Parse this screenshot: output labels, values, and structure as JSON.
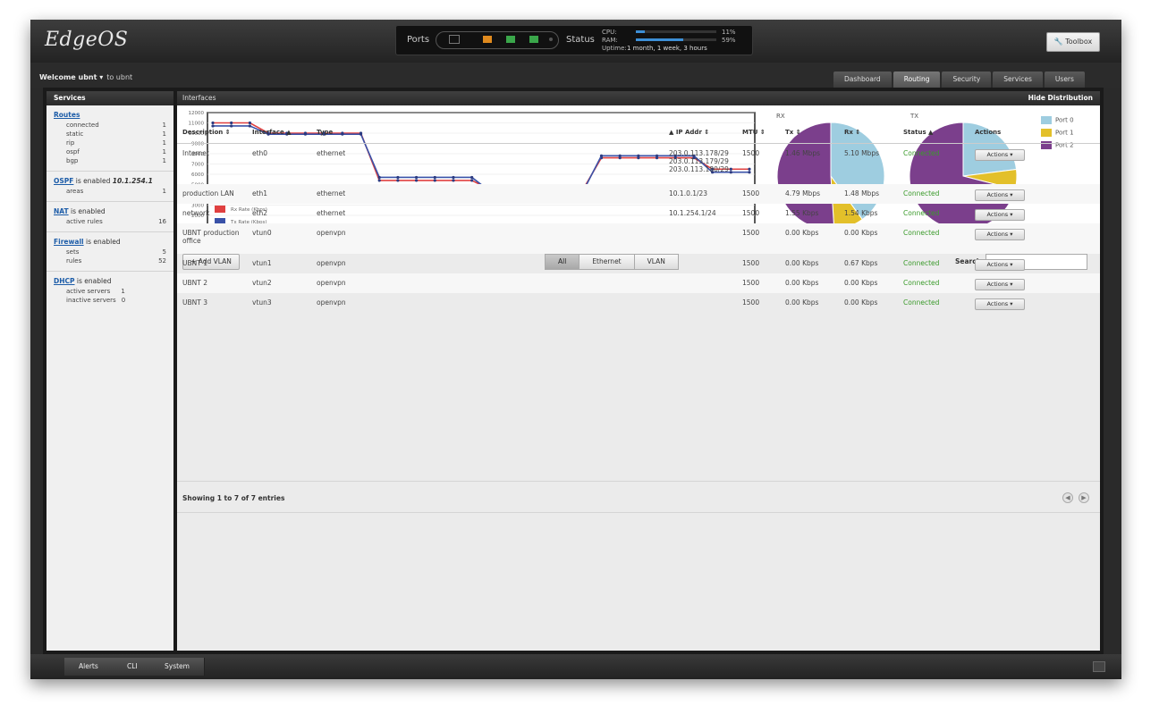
{
  "app": {
    "logo": "EdgeOS"
  },
  "status": {
    "ports_label": "Ports",
    "status_label": "Status",
    "cpu_label": "CPU:",
    "ram_label": "RAM:",
    "cpu_pct": "11%",
    "ram_pct": "59%",
    "cpu_fraction": 0.11,
    "ram_fraction": 0.59,
    "uptime_label": "Uptime:",
    "uptime": "1 month, 1 week, 3 hours"
  },
  "toolbox": {
    "label": "Toolbox"
  },
  "nav": {
    "welcome": "Welcome ubnt ▾",
    "user_note": "to ubnt",
    "tabs": [
      "Dashboard",
      "Routing",
      "Security",
      "Services",
      "Users"
    ]
  },
  "sidebar": {
    "header": "Services",
    "routes": {
      "title": "Routes",
      "rows": [
        {
          "k": "connected",
          "v": "1"
        },
        {
          "k": "static",
          "v": "1"
        },
        {
          "k": "rip",
          "v": "1"
        },
        {
          "k": "ospf",
          "v": "1"
        },
        {
          "k": "bgp",
          "v": "1"
        }
      ]
    },
    "ospf": {
      "title": "OSPF",
      "text": "is enabled",
      "ip": "10.1.254.1",
      "rows": [
        {
          "k": "areas",
          "v": "1"
        }
      ]
    },
    "nat": {
      "title": "NAT",
      "text": "is enabled",
      "rows": [
        {
          "k": "active rules",
          "v": "16"
        }
      ]
    },
    "firewall": {
      "title": "Firewall",
      "text": "is enabled",
      "rows": [
        {
          "k": "sets",
          "v": "5"
        },
        {
          "k": "rules",
          "v": "52"
        }
      ]
    },
    "dhcp": {
      "title": "DHCP",
      "text": "is enabled",
      "rows": [
        {
          "k": "active servers",
          "v": "1"
        },
        {
          "k": "inactive servers",
          "v": "0"
        }
      ]
    }
  },
  "interfaces": {
    "header": "Interfaces",
    "hide_link": "Hide Distribution",
    "rx_label": "RX",
    "tx_label": "TX",
    "pie_legend": [
      "Port 0",
      "Port 1",
      "Port 2"
    ],
    "pie_colors": [
      "#9ecde0",
      "#e3c02a",
      "#7b3f8c"
    ],
    "line_legend": [
      "Rx Rate (Kbps)",
      "Tx Rate (Kbps)"
    ],
    "line_colors": [
      "#e04040",
      "#3a52a8"
    ]
  },
  "chart_data": [
    {
      "type": "line",
      "title": "",
      "ylim": [
        0,
        12000
      ],
      "yticks": [
        0,
        1000,
        2000,
        3000,
        4000,
        5000,
        6000,
        7000,
        8000,
        9000,
        10000,
        11000,
        12000
      ],
      "series": [
        {
          "name": "Rx Rate (Kbps)",
          "values": [
            11000,
            11000,
            11000,
            10000,
            10000,
            10000,
            10000,
            10000,
            10000,
            5400,
            5400,
            5400,
            5400,
            5400,
            5400,
            4500,
            4500,
            4500,
            4500,
            4500,
            4500,
            7600,
            7600,
            7600,
            7600,
            7600,
            7600,
            6500,
            6500,
            6500
          ]
        },
        {
          "name": "Tx Rate (Kbps)",
          "values": [
            10700,
            10700,
            10700,
            9900,
            9900,
            9900,
            9900,
            9900,
            9900,
            5700,
            5700,
            5700,
            5700,
            5700,
            5700,
            4300,
            4300,
            4300,
            4300,
            4300,
            4300,
            7800,
            7800,
            7800,
            7800,
            7800,
            7800,
            6200,
            6200,
            6200
          ]
        }
      ]
    },
    {
      "type": "pie",
      "title": "RX",
      "categories": [
        "Port 0",
        "Port 1",
        "Port 2"
      ],
      "values": [
        40,
        9,
        51
      ]
    },
    {
      "type": "pie",
      "title": "TX",
      "categories": [
        "Port 0",
        "Port 1",
        "Port 2"
      ],
      "values": [
        23,
        6,
        71
      ]
    }
  ],
  "toolbar": {
    "add_vlan": "+ Add VLAN",
    "filters": [
      "All",
      "Ethernet",
      "VLAN"
    ],
    "search_label": "Search",
    "search_value": ""
  },
  "table": {
    "headers": [
      "Description",
      "Interface",
      "Type",
      "IP Addr",
      "MTU",
      "Tx",
      "Rx",
      "Status",
      "Actions"
    ],
    "rows": [
      {
        "desc": "Internet",
        "iface": "eth0",
        "type": "ethernet",
        "ip": "203.0.113.178/29",
        "ip2": "203.0.113.179/29",
        "ip3": "203.0.113.180/29",
        "mtu": "1500",
        "tx": "1.46 Mbps",
        "rx": "5.10 Mbps",
        "status": "Connected",
        "action": "Actions ▾"
      },
      {
        "desc": "production LAN",
        "iface": "eth1",
        "type": "ethernet",
        "ip": "10.1.0.1/23",
        "mtu": "1500",
        "tx": "4.79 Mbps",
        "rx": "1.48 Mbps",
        "status": "Connected",
        "action": "Actions ▾"
      },
      {
        "desc": "network",
        "iface": "eth2",
        "type": "ethernet",
        "ip": "10.1.254.1/24",
        "mtu": "1500",
        "tx": "1.55 Kbps",
        "rx": "1.54 Kbps",
        "status": "Connected",
        "action": "Actions ▾"
      },
      {
        "desc": "UBNT production",
        "desc2": "office",
        "iface": "vtun0",
        "type": "openvpn",
        "ip": "",
        "mtu": "1500",
        "tx": "0.00 Kbps",
        "rx": "0.00 Kbps",
        "status": "Connected",
        "action": "Actions ▾"
      },
      {
        "desc": "UBNT 1",
        "iface": "vtun1",
        "type": "openvpn",
        "ip": "",
        "mtu": "1500",
        "tx": "0.00 Kbps",
        "rx": "0.67 Kbps",
        "status": "Connected",
        "action": "Actions ▾"
      },
      {
        "desc": "UBNT 2",
        "iface": "vtun2",
        "type": "openvpn",
        "ip": "",
        "mtu": "1500",
        "tx": "0.00 Kbps",
        "rx": "0.00 Kbps",
        "status": "Connected",
        "action": "Actions ▾"
      },
      {
        "desc": "UBNT 3",
        "iface": "vtun3",
        "type": "openvpn",
        "ip": "",
        "mtu": "1500",
        "tx": "0.00 Kbps",
        "rx": "0.00 Kbps",
        "status": "Connected",
        "action": "Actions ▾"
      }
    ],
    "footer": "Showing 1 to 7 of 7 entries"
  },
  "bottom": {
    "buttons": [
      "Alerts",
      "CLI",
      "System"
    ]
  }
}
